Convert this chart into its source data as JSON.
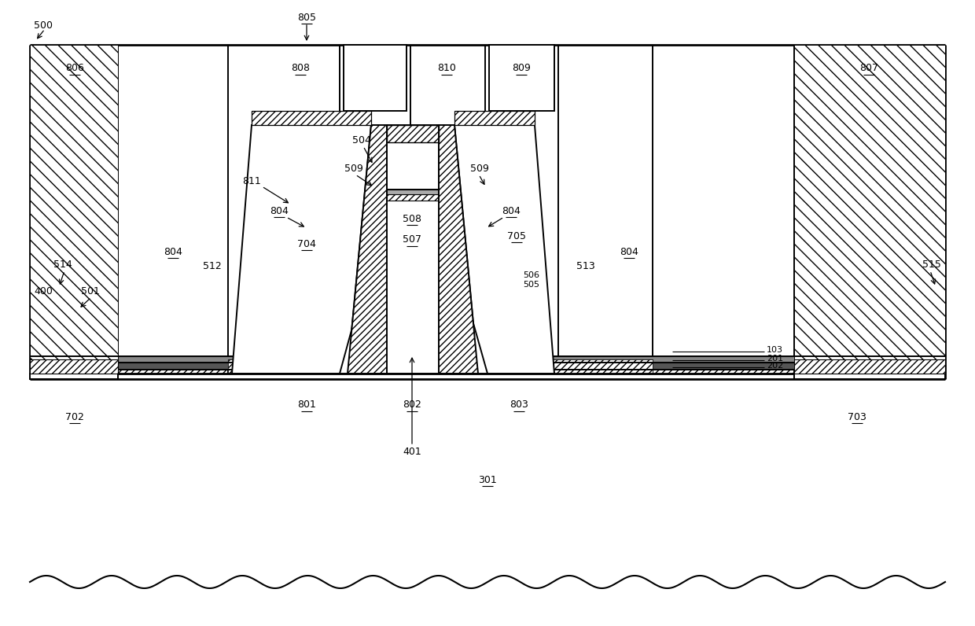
{
  "bg": "#ffffff",
  "black": "#000000",
  "white": "#ffffff",
  "fig_w": 12.4,
  "fig_h": 7.96,
  "dpi": 100
}
